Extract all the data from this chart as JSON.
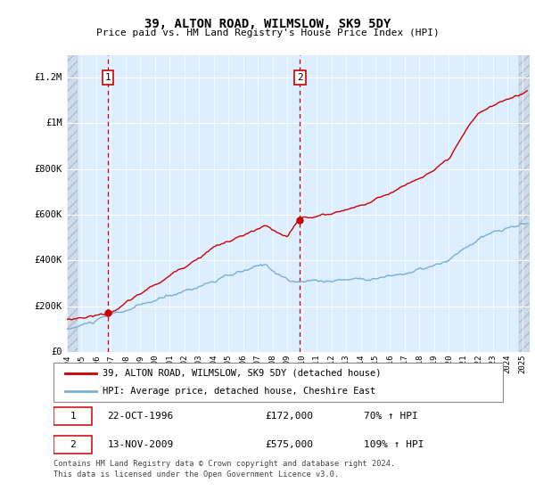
{
  "title": "39, ALTON ROAD, WILMSLOW, SK9 5DY",
  "subtitle": "Price paid vs. HM Land Registry's House Price Index (HPI)",
  "ylabel_ticks": [
    "£0",
    "£200K",
    "£400K",
    "£600K",
    "£800K",
    "£1M",
    "£1.2M"
  ],
  "ytick_values": [
    0,
    200000,
    400000,
    600000,
    800000,
    1000000,
    1200000
  ],
  "ylim": [
    0,
    1300000
  ],
  "xlim_start": 1994.0,
  "xlim_end": 2025.5,
  "sale1_year": 1996.8,
  "sale1_price": 172000,
  "sale1_label": "1",
  "sale2_year": 2009.87,
  "sale2_price": 575000,
  "sale2_label": "2",
  "legend_line1": "39, ALTON ROAD, WILMSLOW, SK9 5DY (detached house)",
  "legend_line2": "HPI: Average price, detached house, Cheshire East",
  "footnote1": "Contains HM Land Registry data © Crown copyright and database right 2024.",
  "footnote2": "This data is licensed under the Open Government Licence v3.0.",
  "table_row1": [
    "1",
    "22-OCT-1996",
    "£172,000",
    "70% ↑ HPI"
  ],
  "table_row2": [
    "2",
    "13-NOV-2009",
    "£575,000",
    "109% ↑ HPI"
  ],
  "hpi_color": "#7aafd4",
  "price_color": "#cc0000",
  "plot_bg": "#ddeeff",
  "sale_dashed_color": "#cc0000"
}
